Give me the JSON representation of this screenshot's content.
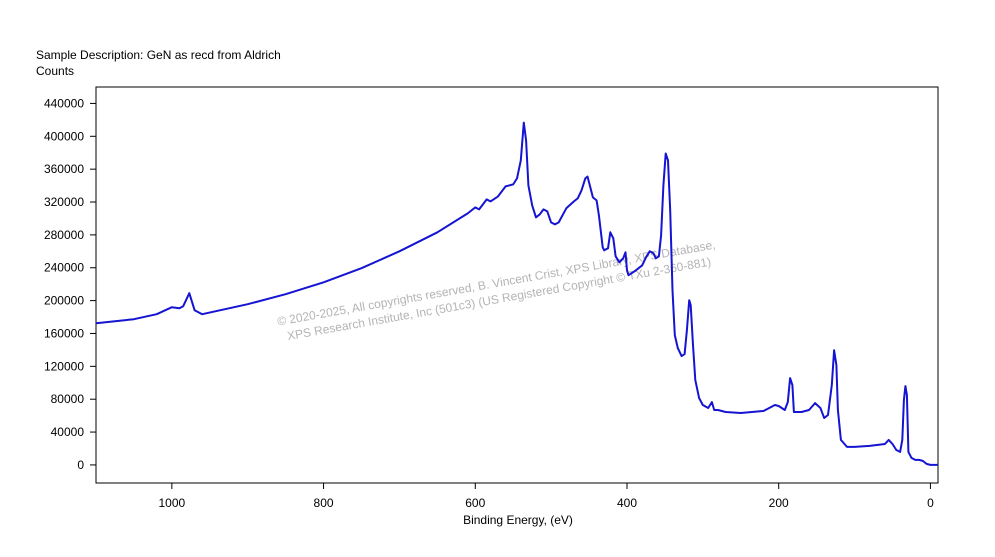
{
  "chart_data": {
    "type": "line",
    "title": "Sample Description:  GeN as recd from Aldrich",
    "y_label": "Counts",
    "x_label": "Binding Energy, (eV)",
    "annotations": [
      "©  2020-2025,  All copyrights reserved,    B. Vincent Crist,   XPS Library,  XPS Database,",
      "XPS Research Institute, Inc (501c3)   (US Registered Copyright  ©  TXu 2-360-881)"
    ],
    "xlim": [
      1100,
      -10
    ],
    "ylim": [
      -22000,
      460000
    ],
    "xticks": [
      1000,
      800,
      600,
      400,
      200,
      0
    ],
    "yticks": [
      0,
      40000,
      80000,
      120000,
      160000,
      200000,
      240000,
      280000,
      320000,
      360000,
      400000,
      440000
    ],
    "x": [
      1100,
      1050,
      1020,
      1000,
      990,
      985,
      977,
      970,
      960,
      900,
      850,
      800,
      750,
      700,
      650,
      610,
      600,
      595,
      585,
      580,
      570,
      560,
      550,
      545,
      540,
      536,
      533,
      530,
      525,
      520,
      515,
      510,
      505,
      500,
      495,
      490,
      480,
      470,
      465,
      460,
      455,
      452,
      448,
      445,
      440,
      437,
      432,
      430,
      425,
      422,
      418,
      415,
      410,
      405,
      402,
      400,
      398,
      390,
      380,
      375,
      370,
      365,
      362,
      358,
      355,
      352,
      349,
      346,
      343,
      340,
      337,
      333,
      328,
      324,
      321,
      318,
      316,
      313,
      310,
      305,
      300,
      293,
      288,
      285,
      280,
      270,
      250,
      220,
      205,
      200,
      192,
      188,
      185,
      182,
      180,
      170,
      160,
      152,
      145,
      140,
      135,
      130,
      127,
      124,
      122,
      118,
      110,
      100,
      80,
      60,
      55,
      50,
      45,
      40,
      37,
      35,
      33,
      31,
      29,
      25,
      20,
      15,
      10,
      5,
      0,
      -10
    ],
    "series": [
      {
        "name": "GeN",
        "color": "#1414d2",
        "values": [
          172500,
          177400,
          183500,
          192000,
          190800,
          193200,
          209000,
          188300,
          183500,
          195600,
          207800,
          222300,
          239400,
          260000,
          283100,
          306200,
          313500,
          311000,
          323200,
          320800,
          326800,
          339000,
          341400,
          348700,
          370600,
          416700,
          394900,
          340200,
          315900,
          301300,
          305000,
          311000,
          308600,
          295200,
          292800,
          295200,
          312300,
          320800,
          324400,
          334100,
          348700,
          351100,
          336600,
          325600,
          322000,
          303800,
          264900,
          261200,
          263700,
          283100,
          275800,
          253900,
          246600,
          251500,
          258800,
          236900,
          230900,
          235700,
          243000,
          252700,
          260000,
          257600,
          251500,
          253900,
          279500,
          340200,
          379100,
          370600,
          309800,
          212600,
          158000,
          142200,
          132400,
          134900,
          164000,
          200500,
          194400,
          145800,
          103300,
          81400,
          72900,
          69300,
          76500,
          66800,
          66800,
          64400,
          63200,
          65600,
          72900,
          71700,
          66800,
          76500,
          105700,
          97200,
          64400,
          64400,
          66800,
          75300,
          69300,
          57100,
          60800,
          97200,
          139700,
          121500,
          66800,
          30400,
          21900,
          21900,
          23100,
          25500,
          30400,
          25500,
          18200,
          15800,
          30400,
          79000,
          96000,
          85000,
          15800,
          8500,
          6100,
          6100,
          4900,
          1200,
          0,
          0
        ]
      }
    ]
  }
}
